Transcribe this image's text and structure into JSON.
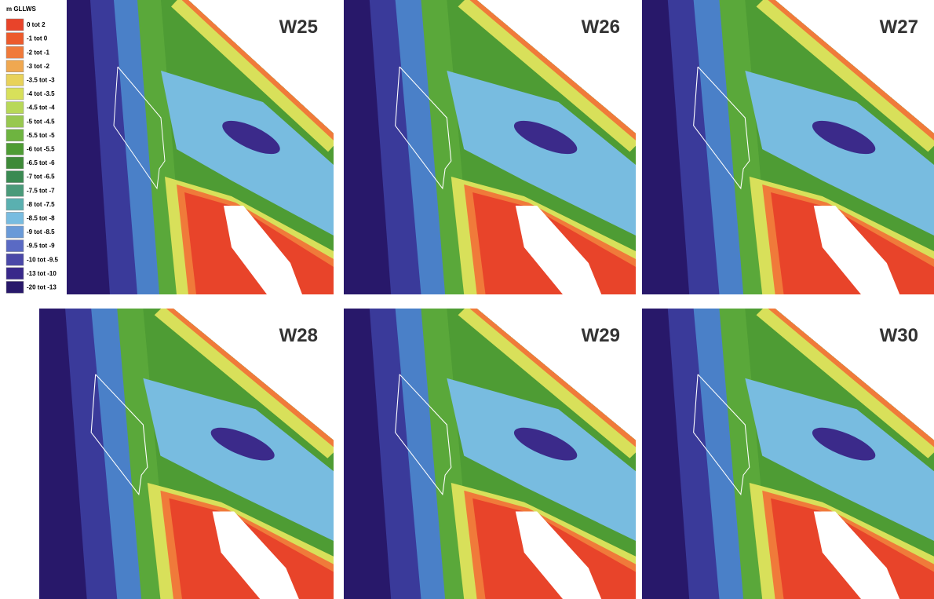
{
  "legend": {
    "title": "m GLLWS",
    "items": [
      {
        "label": "0 tot 2",
        "color": "#e8442a"
      },
      {
        "label": "-1 tot 0",
        "color": "#ec5a2c"
      },
      {
        "label": "-2 tot -1",
        "color": "#f07a3a"
      },
      {
        "label": "-3 tot -2",
        "color": "#f0a850"
      },
      {
        "label": "-3.5 tot -3",
        "color": "#e8d25a"
      },
      {
        "label": "-4 tot -3.5",
        "color": "#d8e05a"
      },
      {
        "label": "-4.5 tot -4",
        "color": "#b8d858"
      },
      {
        "label": "-5 tot -4.5",
        "color": "#98c850"
      },
      {
        "label": "-5.5 tot -5",
        "color": "#6eb440"
      },
      {
        "label": "-6 tot -5.5",
        "color": "#4e9c34"
      },
      {
        "label": "-6.5 tot -6",
        "color": "#3e8a38"
      },
      {
        "label": "-7 tot -6.5",
        "color": "#3a8a52"
      },
      {
        "label": "-7.5 tot -7",
        "color": "#4a9a7a"
      },
      {
        "label": "-8 tot -7.5",
        "color": "#5ab0b0"
      },
      {
        "label": "-8.5 tot -8",
        "color": "#78bce0"
      },
      {
        "label": "-9 tot -8.5",
        "color": "#6a9ad8"
      },
      {
        "label": "-9.5 tot -9",
        "color": "#5a6ac4"
      },
      {
        "label": "-10 tot -9.5",
        "color": "#4a48a8"
      },
      {
        "label": "-13 tot -10",
        "color": "#38288a"
      },
      {
        "label": "-20 tot -13",
        "color": "#28186a"
      }
    ]
  },
  "panels": [
    {
      "label": "W25"
    },
    {
      "label": "W26"
    },
    {
      "label": "W27"
    },
    {
      "label": "W28"
    },
    {
      "label": "W29"
    },
    {
      "label": "W30"
    }
  ]
}
